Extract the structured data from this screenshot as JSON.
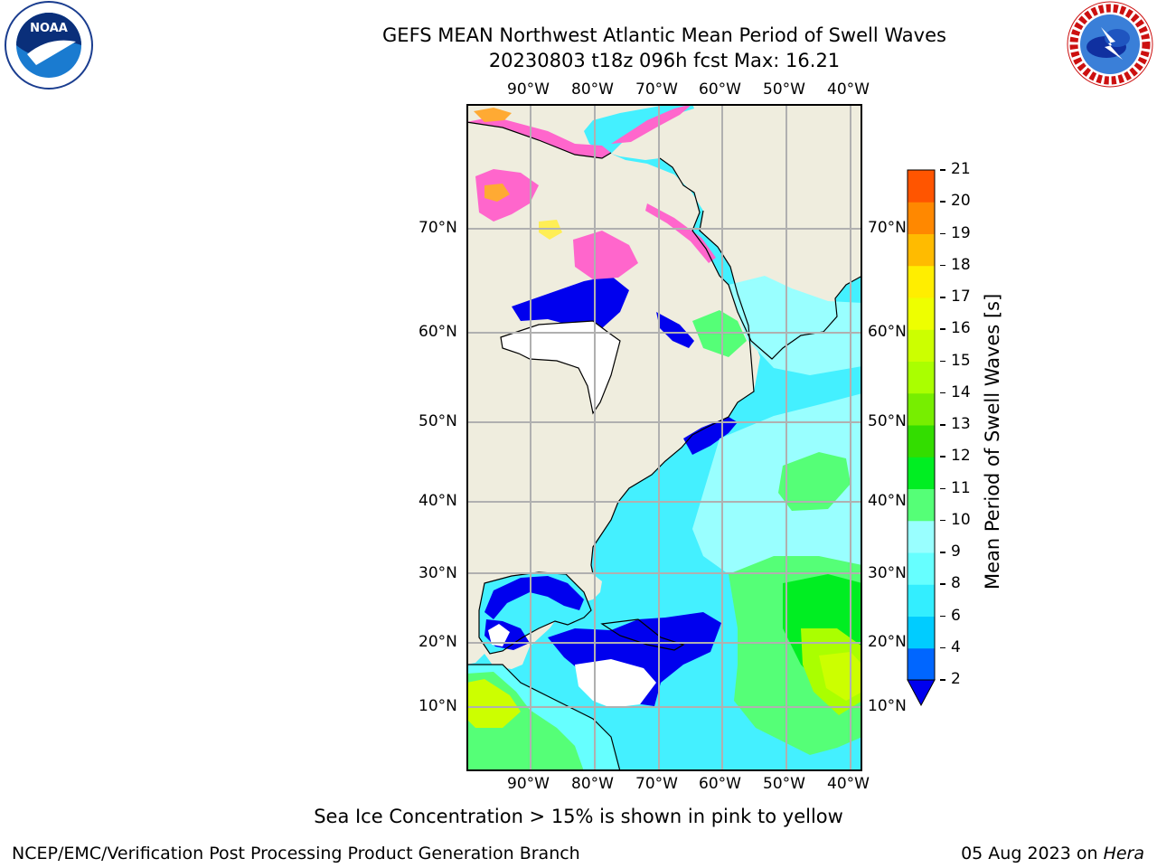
{
  "header": {
    "title_line1": "GEFS MEAN Northwest Atlantic Mean Period of Swell Waves",
    "title_line2": "20230803 t18z 096h fcst   Max: 16.21"
  },
  "logos": {
    "noaa_text": "NOAA",
    "noaa_ring_text": "NATIONAL OCEANIC AND ATMOSPHERIC ADMINISTRATION · U.S. DEPARTMENT OF COMMERCE",
    "nws_ring_text": "NATIONAL WEATHER SERVICE"
  },
  "map": {
    "lon_labels": [
      "90°W",
      "80°W",
      "70°W",
      "60°W",
      "50°W",
      "40°W"
    ],
    "lat_labels": [
      "70°N",
      "60°N",
      "50°N",
      "40°N",
      "30°N",
      "20°N",
      "10°N"
    ],
    "colors": {
      "land": "#efedde",
      "ice_pink": "#ff66cc",
      "ice_orange": "#ffaa33",
      "ice_yellow": "#ffee55",
      "no_data": "#ffffff",
      "grid": "#b0b0b0"
    }
  },
  "colorbar": {
    "label": "Mean Period of Swell Waves [s]",
    "ticks": [
      "2",
      "4",
      "6",
      "8",
      "9",
      "10",
      "11",
      "12",
      "13",
      "14",
      "15",
      "16",
      "17",
      "18",
      "19",
      "20",
      "21"
    ],
    "colors": [
      "#0066ff",
      "#00ccff",
      "#33eeff",
      "#66ffff",
      "#99ffff",
      "#55ff77",
      "#00ee22",
      "#33dd00",
      "#77ee00",
      "#aaff00",
      "#ccff00",
      "#eeff00",
      "#ffee00",
      "#ffbb00",
      "#ff8800",
      "#ff5500",
      "#ff2200",
      "#ff0000"
    ],
    "under_color": "#0000ee"
  },
  "footer": {
    "note": "Sea Ice Concentration > 15% is shown in pink to yellow",
    "credit": "NCEP/EMC/Verification Post Processing Product Generation Branch",
    "date_prefix": "05 Aug 2023 on ",
    "machine": "Hera"
  }
}
